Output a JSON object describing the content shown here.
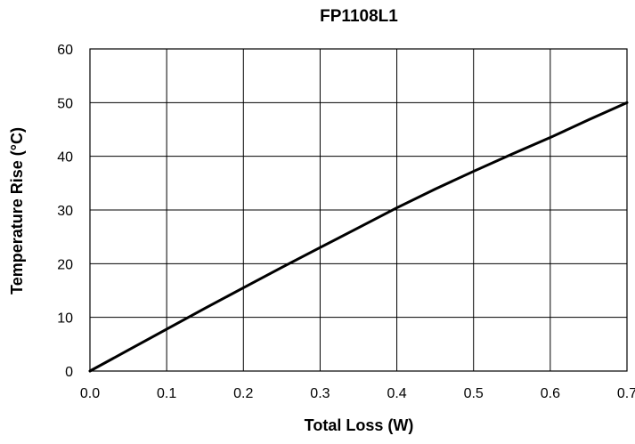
{
  "chart_data": {
    "type": "line",
    "title": "FP1108L1",
    "xlabel": "Total Loss (W)",
    "ylabel": "Temperature Rise (°C)",
    "xlim": [
      0,
      0.7
    ],
    "ylim": [
      0,
      60
    ],
    "x_ticks": [
      "0.0",
      "0.1",
      "0.2",
      "0.3",
      "0.4",
      "0.5",
      "0.6",
      "0.7"
    ],
    "y_ticks": [
      "0",
      "10",
      "20",
      "30",
      "40",
      "50",
      "60"
    ],
    "grid": true,
    "series": [
      {
        "x": [
          0.0,
          0.05,
          0.1,
          0.15,
          0.2,
          0.25,
          0.3,
          0.35,
          0.4,
          0.45,
          0.5,
          0.55,
          0.6,
          0.65,
          0.7
        ],
        "values": [
          0.0,
          3.9,
          7.8,
          11.7,
          15.5,
          19.3,
          23.0,
          26.7,
          30.4,
          33.9,
          37.2,
          40.4,
          43.5,
          46.8,
          50.0
        ]
      }
    ],
    "colors": {
      "line": "#000000",
      "grid": "#000000",
      "background": "#ffffff"
    }
  }
}
